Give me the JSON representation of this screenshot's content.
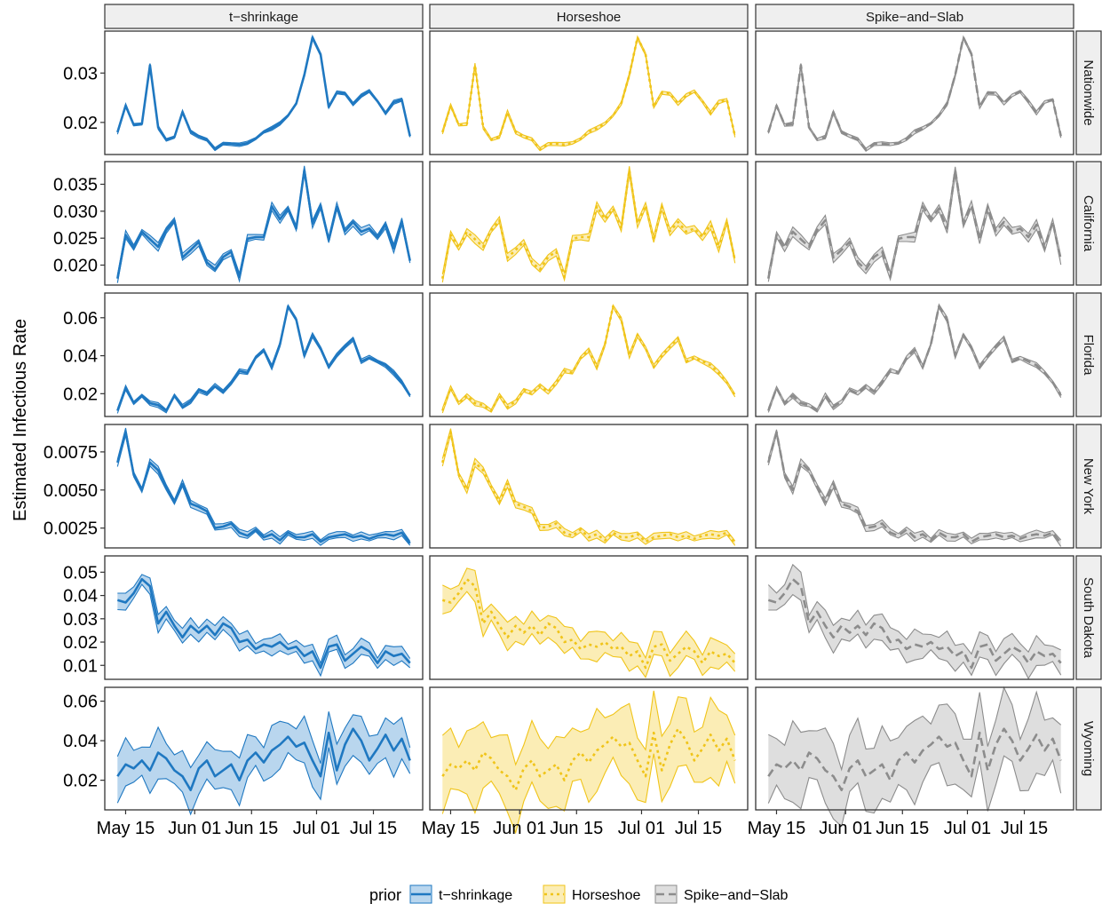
{
  "chart_data": {
    "type": "line",
    "ylabel": "Estimated Infectious Rate",
    "x_ticks": [
      "May 15",
      "Jun 01",
      "Jun 15",
      "Jul 01",
      "Jul 15"
    ],
    "x_tick_dates": [
      "2020-05-15",
      "2020-06-01",
      "2020-06-15",
      "2020-07-01",
      "2020-07-15"
    ],
    "x_range": [
      "2020-05-13",
      "2020-07-24"
    ],
    "columns": [
      "t−shrinkage",
      "Horseshoe",
      "Spike−and−Slab"
    ],
    "legend": {
      "title": "prior",
      "position": "bottom",
      "items": [
        {
          "label": "t−shrinkage",
          "color": "#1f78c1",
          "fill": "#b9d6ee",
          "dash": "solid"
        },
        {
          "label": "Horseshoe",
          "color": "#f0c419",
          "fill": "#fbedb5",
          "dash": "dotted"
        },
        {
          "label": "Spike−and−Slab",
          "color": "#8c8c8c",
          "fill": "#dedede",
          "dash": "dashed"
        }
      ]
    },
    "regions": [
      {
        "name": "Nationwide",
        "ylim": [
          0.0135,
          0.0385
        ],
        "yticks": [
          "0.02",
          "0.03"
        ],
        "ytick_values": [
          0.02,
          0.03
        ],
        "x": [
          "2020-05-13",
          "2020-05-15",
          "2020-05-17",
          "2020-05-19",
          "2020-05-21",
          "2020-05-23",
          "2020-05-25",
          "2020-05-27",
          "2020-05-29",
          "2020-05-31",
          "2020-06-02",
          "2020-06-04",
          "2020-06-06",
          "2020-06-08",
          "2020-06-10",
          "2020-06-12",
          "2020-06-14",
          "2020-06-16",
          "2020-06-18",
          "2020-06-20",
          "2020-06-22",
          "2020-06-24",
          "2020-06-26",
          "2020-06-28",
          "2020-06-30",
          "2020-07-02",
          "2020-07-04",
          "2020-07-06",
          "2020-07-08",
          "2020-07-10",
          "2020-07-12",
          "2020-07-14",
          "2020-07-16",
          "2020-07-18",
          "2020-07-20",
          "2020-07-22",
          "2020-07-24"
        ],
        "values": [
          0.018,
          0.0234,
          0.0195,
          0.0197,
          0.0316,
          0.019,
          0.0165,
          0.017,
          0.0221,
          0.0181,
          0.0172,
          0.0165,
          0.0145,
          0.0157,
          0.0157,
          0.0155,
          0.0158,
          0.0167,
          0.0181,
          0.0188,
          0.0198,
          0.0214,
          0.0238,
          0.0296,
          0.0372,
          0.0338,
          0.0231,
          0.026,
          0.0259,
          0.0238,
          0.0254,
          0.0263,
          0.0243,
          0.0219,
          0.0241,
          0.0246,
          0.0172
        ],
        "band": [
          0.0003,
          0.0003,
          0.0003
        ]
      },
      {
        "name": "California",
        "ylim": [
          0.0163,
          0.0392
        ],
        "yticks": [
          "0.020",
          "0.025",
          "0.030",
          "0.035"
        ],
        "ytick_values": [
          0.02,
          0.025,
          0.03,
          0.035
        ],
        "x": [
          "2020-05-13",
          "2020-05-15",
          "2020-05-17",
          "2020-05-19",
          "2020-05-21",
          "2020-05-23",
          "2020-05-25",
          "2020-05-27",
          "2020-05-29",
          "2020-05-31",
          "2020-06-02",
          "2020-06-04",
          "2020-06-06",
          "2020-06-08",
          "2020-06-10",
          "2020-06-12",
          "2020-06-14",
          "2020-06-16",
          "2020-06-18",
          "2020-06-20",
          "2020-06-22",
          "2020-06-24",
          "2020-06-26",
          "2020-06-28",
          "2020-06-30",
          "2020-07-02",
          "2020-07-04",
          "2020-07-06",
          "2020-07-08",
          "2020-07-10",
          "2020-07-12",
          "2020-07-14",
          "2020-07-16",
          "2020-07-18",
          "2020-07-20",
          "2020-07-22",
          "2020-07-24"
        ],
        "values": [
          0.0175,
          0.0256,
          0.0232,
          0.0262,
          0.0248,
          0.0234,
          0.0265,
          0.0283,
          0.0214,
          0.0228,
          0.0243,
          0.0205,
          0.0192,
          0.0215,
          0.0225,
          0.0178,
          0.0249,
          0.0252,
          0.0252,
          0.0309,
          0.0285,
          0.0305,
          0.0268,
          0.0376,
          0.0277,
          0.0311,
          0.0246,
          0.0308,
          0.0263,
          0.028,
          0.0262,
          0.0268,
          0.0252,
          0.0275,
          0.0231,
          0.0281,
          0.0208
        ],
        "band": [
          0.0006,
          0.0006,
          0.0007
        ]
      },
      {
        "name": "Florida",
        "ylim": [
          0.008,
          0.073
        ],
        "yticks": [
          "0.02",
          "0.04",
          "0.06"
        ],
        "ytick_values": [
          0.02,
          0.04,
          0.06
        ],
        "x": [
          "2020-05-13",
          "2020-05-15",
          "2020-05-17",
          "2020-05-19",
          "2020-05-21",
          "2020-05-23",
          "2020-05-25",
          "2020-05-27",
          "2020-05-29",
          "2020-05-31",
          "2020-06-02",
          "2020-06-04",
          "2020-06-06",
          "2020-06-08",
          "2020-06-10",
          "2020-06-12",
          "2020-06-14",
          "2020-06-16",
          "2020-06-18",
          "2020-06-20",
          "2020-06-22",
          "2020-06-24",
          "2020-06-26",
          "2020-06-28",
          "2020-06-30",
          "2020-07-02",
          "2020-07-04",
          "2020-07-06",
          "2020-07-08",
          "2020-07-10",
          "2020-07-12",
          "2020-07-14",
          "2020-07-16",
          "2020-07-18",
          "2020-07-20",
          "2020-07-22",
          "2020-07-24"
        ],
        "values": [
          0.011,
          0.023,
          0.015,
          0.019,
          0.015,
          0.014,
          0.011,
          0.019,
          0.013,
          0.016,
          0.022,
          0.02,
          0.024,
          0.021,
          0.026,
          0.032,
          0.031,
          0.039,
          0.043,
          0.034,
          0.046,
          0.066,
          0.059,
          0.04,
          0.051,
          0.044,
          0.034,
          0.04,
          0.045,
          0.049,
          0.037,
          0.039,
          0.037,
          0.035,
          0.031,
          0.026,
          0.019
        ],
        "band": [
          0.001,
          0.001,
          0.001
        ]
      },
      {
        "name": "New York",
        "ylim": [
          0.0012,
          0.0093
        ],
        "yticks": [
          "0.0025",
          "0.0050",
          "0.0075"
        ],
        "ytick_values": [
          0.0025,
          0.005,
          0.0075
        ],
        "x": [
          "2020-05-13",
          "2020-05-15",
          "2020-05-17",
          "2020-05-19",
          "2020-05-21",
          "2020-05-23",
          "2020-05-25",
          "2020-05-27",
          "2020-05-29",
          "2020-05-31",
          "2020-06-02",
          "2020-06-04",
          "2020-06-06",
          "2020-06-08",
          "2020-06-10",
          "2020-06-12",
          "2020-06-14",
          "2020-06-16",
          "2020-06-18",
          "2020-06-20",
          "2020-06-22",
          "2020-06-24",
          "2020-06-26",
          "2020-06-28",
          "2020-06-30",
          "2020-07-02",
          "2020-07-04",
          "2020-07-06",
          "2020-07-08",
          "2020-07-10",
          "2020-07-12",
          "2020-07-14",
          "2020-07-16",
          "2020-07-18",
          "2020-07-20",
          "2020-07-22",
          "2020-07-24"
        ],
        "values": [
          0.0068,
          0.0088,
          0.006,
          0.005,
          0.0068,
          0.0063,
          0.0052,
          0.0042,
          0.0054,
          0.0041,
          0.0039,
          0.0036,
          0.0025,
          0.0026,
          0.0028,
          0.0022,
          0.002,
          0.0024,
          0.0019,
          0.0021,
          0.0017,
          0.0022,
          0.0019,
          0.0019,
          0.0021,
          0.0016,
          0.0019,
          0.002,
          0.0021,
          0.0019,
          0.002,
          0.0018,
          0.002,
          0.0021,
          0.002,
          0.0022,
          0.0015
        ],
        "band": [
          0.0002,
          0.0002,
          0.0002
        ]
      },
      {
        "name": "South Dakota",
        "ylim": [
          0.004,
          0.057
        ],
        "yticks": [
          "0.01",
          "0.02",
          "0.03",
          "0.04",
          "0.05"
        ],
        "ytick_values": [
          0.01,
          0.02,
          0.03,
          0.04,
          0.05
        ],
        "x": [
          "2020-05-13",
          "2020-05-15",
          "2020-05-17",
          "2020-05-19",
          "2020-05-21",
          "2020-05-23",
          "2020-05-25",
          "2020-05-27",
          "2020-05-29",
          "2020-05-31",
          "2020-06-02",
          "2020-06-04",
          "2020-06-06",
          "2020-06-08",
          "2020-06-10",
          "2020-06-12",
          "2020-06-14",
          "2020-06-16",
          "2020-06-18",
          "2020-06-20",
          "2020-06-22",
          "2020-06-24",
          "2020-06-26",
          "2020-06-28",
          "2020-06-30",
          "2020-07-02",
          "2020-07-04",
          "2020-07-06",
          "2020-07-08",
          "2020-07-10",
          "2020-07-12",
          "2020-07-14",
          "2020-07-16",
          "2020-07-18",
          "2020-07-20",
          "2020-07-22",
          "2020-07-24"
        ],
        "values": [
          0.038,
          0.037,
          0.041,
          0.047,
          0.044,
          0.028,
          0.033,
          0.027,
          0.022,
          0.027,
          0.024,
          0.027,
          0.023,
          0.028,
          0.026,
          0.02,
          0.021,
          0.017,
          0.019,
          0.018,
          0.02,
          0.017,
          0.018,
          0.014,
          0.016,
          0.009,
          0.018,
          0.019,
          0.012,
          0.015,
          0.018,
          0.016,
          0.011,
          0.016,
          0.014,
          0.015,
          0.011
        ],
        "band": [
          0.003,
          0.005,
          0.005
        ]
      },
      {
        "name": "Wyoming",
        "ylim": [
          0.005,
          0.067
        ],
        "yticks": [
          "0.02",
          "0.04",
          "0.06"
        ],
        "ytick_values": [
          0.02,
          0.04,
          0.06
        ],
        "x": [
          "2020-05-13",
          "2020-05-15",
          "2020-05-17",
          "2020-05-19",
          "2020-05-21",
          "2020-05-23",
          "2020-05-25",
          "2020-05-27",
          "2020-05-29",
          "2020-05-31",
          "2020-06-02",
          "2020-06-04",
          "2020-06-06",
          "2020-06-08",
          "2020-06-10",
          "2020-06-12",
          "2020-06-14",
          "2020-06-16",
          "2020-06-18",
          "2020-06-20",
          "2020-06-22",
          "2020-06-24",
          "2020-06-26",
          "2020-06-28",
          "2020-06-30",
          "2020-07-02",
          "2020-07-04",
          "2020-07-06",
          "2020-07-08",
          "2020-07-10",
          "2020-07-12",
          "2020-07-14",
          "2020-07-16",
          "2020-07-18",
          "2020-07-20",
          "2020-07-22",
          "2020-07-24"
        ],
        "values": [
          0.022,
          0.028,
          0.026,
          0.03,
          0.025,
          0.034,
          0.031,
          0.025,
          0.022,
          0.015,
          0.026,
          0.03,
          0.022,
          0.025,
          0.028,
          0.02,
          0.03,
          0.034,
          0.029,
          0.035,
          0.038,
          0.042,
          0.037,
          0.039,
          0.03,
          0.022,
          0.044,
          0.025,
          0.038,
          0.046,
          0.04,
          0.03,
          0.036,
          0.043,
          0.035,
          0.041,
          0.03
        ],
        "band": [
          0.01,
          0.016,
          0.016
        ]
      }
    ]
  }
}
